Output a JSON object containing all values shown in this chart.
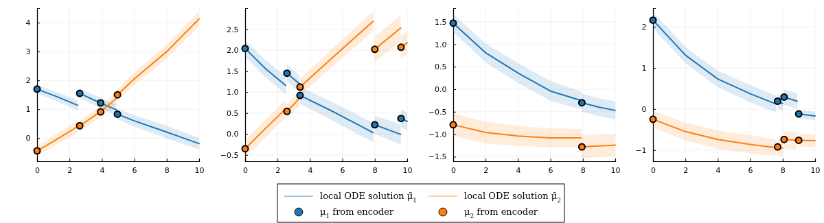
{
  "chart_data": [
    {
      "type": "line",
      "xlim": [
        0,
        10
      ],
      "xticks": [
        0,
        2,
        4,
        6,
        8,
        10
      ],
      "ylim": [
        -0.8,
        4.5
      ],
      "yticks": [
        0,
        1,
        2,
        3,
        4
      ],
      "grid": true,
      "series": [
        {
          "color": "#1f77b4",
          "x": [
            0,
            1.25,
            2.5,
            2.56,
            2.63,
            3.9,
            4.9,
            4.93,
            4.96,
            6,
            8,
            10
          ],
          "values": [
            1.7,
            1.43,
            1.14,
            null,
            1.55,
            1.22,
            0.98,
            null,
            0.83,
            0.6,
            0.21,
            -0.19
          ],
          "lower": [
            1.55,
            1.27,
            0.96,
            null,
            1.38,
            1.04,
            0.78,
            null,
            0.65,
            0.4,
            -0.01,
            -0.39
          ],
          "upper": [
            1.85,
            1.59,
            1.32,
            null,
            1.72,
            1.4,
            1.18,
            null,
            1.01,
            0.8,
            0.43,
            0.01
          ]
        },
        {
          "color": "#ff7f0e",
          "x": [
            0,
            1.25,
            2.5,
            2.56,
            2.63,
            3.9,
            4.9,
            4.93,
            4.96,
            6,
            8,
            10
          ],
          "values": [
            -0.44,
            -0.03,
            0.4,
            null,
            0.43,
            0.91,
            1.38,
            null,
            1.5,
            2.05,
            3.0,
            4.13
          ],
          "lower": [
            -0.62,
            -0.22,
            0.18,
            null,
            0.25,
            0.72,
            1.18,
            null,
            1.3,
            1.83,
            2.76,
            3.87
          ],
          "upper": [
            -0.26,
            0.16,
            0.62,
            null,
            0.61,
            1.1,
            1.58,
            null,
            1.7,
            2.27,
            3.24,
            4.39
          ]
        },
        {
          "type": "scatter",
          "marker": "circle",
          "color": "#1f77b4",
          "x": [
            0,
            2.63,
            3.92,
            4.96
          ],
          "values": [
            1.7,
            1.55,
            1.22,
            0.83
          ]
        },
        {
          "type": "scatter",
          "marker": "circle",
          "color": "#ff7f0e",
          "x": [
            0,
            2.63,
            3.92,
            4.96
          ],
          "values": [
            -0.44,
            0.43,
            0.91,
            1.5
          ]
        }
      ]
    },
    {
      "type": "line",
      "xlim": [
        0,
        10
      ],
      "xticks": [
        0,
        2,
        4,
        6,
        8,
        10
      ],
      "ylim": [
        -0.65,
        3.0
      ],
      "yticks": [
        {
          "value": -0.5,
          "label": "−0.5"
        },
        {
          "value": 0,
          "label": "0.0"
        },
        {
          "value": 0.5,
          "label": "0.5"
        },
        {
          "value": 1,
          "label": "1.0"
        },
        {
          "value": 1.5,
          "label": "1.5"
        },
        {
          "value": 2,
          "label": "2.0"
        },
        {
          "value": 2.5,
          "label": "2.5"
        }
      ],
      "grid": true,
      "legend": "bottom",
      "series": [
        {
          "name": "local ODE solution μ̃$_{1}$",
          "color": "#1f77b4",
          "x": [
            0,
            1.25,
            2.5,
            2.54,
            2.58,
            3.35,
            3.37,
            3.39,
            5.5,
            7.9,
            7.95,
            8.0,
            9.6,
            9.61,
            9.62,
            10
          ],
          "values": [
            2.04,
            1.56,
            1.16,
            null,
            1.45,
            1.2,
            null,
            0.92,
            0.52,
            0.03,
            null,
            0.22,
            -0.01,
            null,
            0.37,
            0.3
          ],
          "lower": [
            1.84,
            1.35,
            0.95,
            null,
            1.25,
            1.0,
            null,
            0.72,
            0.3,
            -0.2,
            null,
            0.0,
            -0.25,
            null,
            0.15,
            0.1
          ],
          "upper": [
            2.24,
            1.77,
            1.37,
            null,
            1.65,
            1.4,
            null,
            1.12,
            0.74,
            0.26,
            null,
            0.44,
            0.23,
            null,
            0.59,
            0.5
          ]
        },
        {
          "name": "local ODE solution μ̃$_{2}$",
          "color": "#ff7f0e",
          "x": [
            0,
            1.25,
            2.5,
            2.54,
            2.58,
            3.35,
            3.37,
            3.39,
            5.5,
            7.9,
            7.95,
            8.0,
            9.6,
            9.61,
            9.62,
            10
          ],
          "values": [
            -0.35,
            0.13,
            0.6,
            null,
            0.54,
            0.85,
            null,
            1.12,
            1.86,
            2.69,
            null,
            2.02,
            2.53,
            null,
            2.07,
            2.18
          ],
          "lower": [
            -0.55,
            -0.08,
            0.38,
            null,
            0.36,
            0.67,
            null,
            0.92,
            1.64,
            2.45,
            null,
            1.72,
            2.22,
            null,
            1.8,
            1.9
          ],
          "upper": [
            -0.15,
            0.34,
            0.82,
            null,
            0.72,
            1.03,
            null,
            1.32,
            2.08,
            2.93,
            null,
            2.32,
            2.84,
            null,
            2.34,
            2.46
          ]
        },
        {
          "name": "μ$_{1}$ from encoder",
          "type": "scatter",
          "marker": "circle",
          "color": "#1f77b4",
          "x": [
            0,
            2.58,
            3.39,
            8.0,
            9.62
          ],
          "values": [
            2.04,
            1.45,
            0.92,
            0.22,
            0.37
          ]
        },
        {
          "name": "μ$_{2}$ from encoder",
          "type": "scatter",
          "marker": "circle",
          "color": "#ff7f0e",
          "x": [
            0,
            2.58,
            3.39,
            8.0,
            9.62
          ],
          "values": [
            -0.35,
            0.54,
            1.12,
            2.02,
            2.07
          ]
        }
      ]
    },
    {
      "type": "line",
      "xlim": [
        0,
        10
      ],
      "xticks": [
        0,
        2,
        4,
        6,
        8,
        10
      ],
      "ylim": [
        -1.6,
        1.8
      ],
      "yticks": [
        {
          "value": -1.5,
          "label": "−1.5"
        },
        {
          "value": -1,
          "label": "−1.0"
        },
        {
          "value": -0.5,
          "label": "−0.5"
        },
        {
          "value": 0,
          "label": "0.0"
        },
        {
          "value": 0.5,
          "label": "0.5"
        },
        {
          "value": 1,
          "label": "1.0"
        },
        {
          "value": 1.5,
          "label": "1.5"
        }
      ],
      "grid": true,
      "series": [
        {
          "color": "#1f77b4",
          "x": [
            0,
            2,
            4,
            6,
            7.9,
            7.92,
            7.94,
            9,
            10
          ],
          "values": [
            1.47,
            0.81,
            0.36,
            -0.04,
            -0.25,
            null,
            -0.3,
            -0.4,
            -0.47
          ],
          "lower": [
            1.27,
            0.6,
            0.14,
            -0.26,
            -0.45,
            null,
            -0.5,
            -0.6,
            -0.67
          ],
          "upper": [
            1.67,
            1.02,
            0.58,
            0.18,
            -0.05,
            null,
            -0.1,
            -0.2,
            -0.27
          ]
        },
        {
          "color": "#ff7f0e",
          "x": [
            0,
            2,
            4,
            6,
            7.9,
            7.92,
            7.94,
            9,
            10
          ],
          "values": [
            -0.79,
            -0.96,
            -1.04,
            -1.08,
            -1.08,
            null,
            -1.28,
            -1.26,
            -1.24
          ],
          "lower": [
            -1.04,
            -1.2,
            -1.26,
            -1.29,
            -1.28,
            null,
            -1.53,
            -1.5,
            -1.48
          ],
          "upper": [
            -0.54,
            -0.72,
            -0.82,
            -0.87,
            -0.88,
            null,
            -1.03,
            -1.02,
            -1.0
          ]
        },
        {
          "type": "scatter",
          "marker": "circle",
          "color": "#1f77b4",
          "x": [
            0,
            7.94
          ],
          "values": [
            1.47,
            -0.3
          ]
        },
        {
          "type": "scatter",
          "marker": "circle",
          "color": "#ff7f0e",
          "x": [
            0,
            7.94
          ],
          "values": [
            -0.79,
            -1.28
          ]
        }
      ]
    },
    {
      "type": "line",
      "xlim": [
        0,
        10
      ],
      "xticks": [
        0,
        2,
        4,
        6,
        8,
        10
      ],
      "ylim": [
        -1.27,
        2.45
      ],
      "yticks": [
        {
          "value": -1,
          "label": "−1"
        },
        0,
        1,
        2
      ],
      "grid": true,
      "series": [
        {
          "color": "#1f77b4",
          "x": [
            0,
            2,
            4,
            6,
            7.6,
            7.65,
            7.69,
            8.0,
            8.05,
            8.09,
            8.9,
            8.95,
            8.99,
            10
          ],
          "values": [
            2.16,
            1.31,
            0.73,
            0.37,
            0.12,
            null,
            0.19,
            0.13,
            null,
            0.29,
            0.19,
            null,
            -0.12,
            -0.17
          ],
          "lower": [
            1.96,
            1.11,
            0.53,
            0.16,
            -0.08,
            null,
            0.02,
            -0.04,
            null,
            0.1,
            0.0,
            null,
            -0.22,
            -0.28
          ],
          "upper": [
            2.36,
            1.51,
            0.93,
            0.58,
            0.32,
            null,
            0.36,
            0.3,
            null,
            0.48,
            0.38,
            null,
            -0.02,
            -0.06
          ]
        },
        {
          "color": "#ff7f0e",
          "x": [
            0,
            2,
            4,
            6,
            7.6,
            7.65,
            7.69,
            8.0,
            8.05,
            8.09,
            8.9,
            8.95,
            8.99,
            10
          ],
          "values": [
            -0.25,
            -0.55,
            -0.74,
            -0.86,
            -0.94,
            null,
            -0.92,
            -0.95,
            null,
            -0.74,
            -0.76,
            null,
            -0.76,
            -0.77
          ],
          "lower": [
            -0.45,
            -0.77,
            -0.96,
            -1.08,
            -1.14,
            null,
            -1.12,
            -1.16,
            null,
            -0.96,
            -0.97,
            null,
            -0.92,
            -0.93
          ],
          "upper": [
            -0.05,
            -0.33,
            -0.52,
            -0.64,
            -0.74,
            null,
            -0.72,
            -0.74,
            null,
            -0.55,
            -0.56,
            null,
            -0.6,
            -0.61
          ]
        },
        {
          "type": "scatter",
          "marker": "circle",
          "color": "#1f77b4",
          "x": [
            0,
            7.69,
            8.09,
            8.99
          ],
          "values": [
            2.16,
            0.19,
            0.29,
            -0.12
          ]
        },
        {
          "type": "scatter",
          "marker": "circle",
          "color": "#ff7f0e",
          "x": [
            0,
            7.69,
            8.09,
            8.99
          ],
          "values": [
            -0.25,
            -0.92,
            -0.74,
            -0.76
          ]
        }
      ]
    }
  ]
}
